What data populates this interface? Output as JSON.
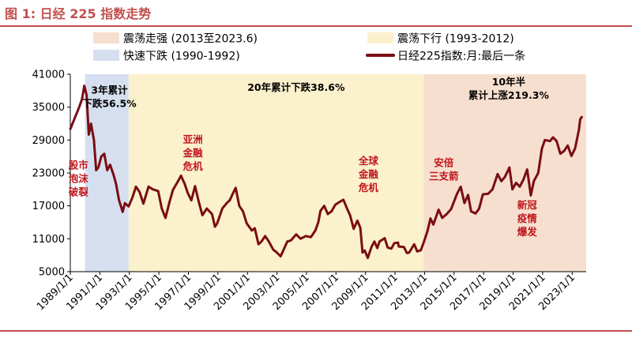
{
  "figure_title": "图 1: 日经 225 指数走势",
  "colors": {
    "title": "#c0504d",
    "series": "#7a0d12",
    "oscillating_up": "#f6dfcf",
    "oscillating_down": "#fbf1cd",
    "rapid_decline": "#d5dff0",
    "red_annotation": "#c0161d"
  },
  "chart_data": {
    "type": "line",
    "title": "",
    "xlabel": "",
    "ylabel": "",
    "ylim": [
      5000,
      41000
    ],
    "yticks": [
      5000,
      11000,
      17000,
      23000,
      29000,
      35000,
      41000
    ],
    "ytick_labels": [
      "5000",
      "11000",
      "17000",
      "23000",
      "29000",
      "35000",
      "41000"
    ],
    "xticks": [
      1989,
      1991,
      1993,
      1995,
      1997,
      1999,
      2001,
      2003,
      2005,
      2007,
      2009,
      2011,
      2013,
      2015,
      2017,
      2019,
      2021,
      2023
    ],
    "xtick_labels": [
      "1989/1/1",
      "1991/1/1",
      "1993/1/1",
      "1995/1/1",
      "1997/1/1",
      "1999/1/1",
      "2001/1/1",
      "2003/1/1",
      "2005/1/1",
      "2007/1/1",
      "2009/1/1",
      "2011/1/1",
      "2013/1/1",
      "2015/1/1",
      "2017/1/1",
      "2019/1/1",
      "2021/1/1",
      "2023/1/1"
    ],
    "xlim": [
      1989,
      2023.95
    ],
    "grid": false,
    "legend_position": "top",
    "shaded_regions": [
      {
        "label": "快速下跌 (1990-1992)",
        "start": 1990.0,
        "end": 1992.95,
        "color": "#d5dff0"
      },
      {
        "label": "震荡下行 (1993-2012)",
        "start": 1992.95,
        "end": 2012.95,
        "color": "#fbf1cd"
      },
      {
        "label": "震荡走强 (2013至2023.6)",
        "start": 2012.95,
        "end": 2023.95,
        "color": "#f6dfcf"
      }
    ],
    "series": [
      {
        "name": "日经225指数:月:最后一条",
        "color": "#7a0d12",
        "points": [
          [
            1989.0,
            31000
          ],
          [
            1989.3,
            33000
          ],
          [
            1989.6,
            35000
          ],
          [
            1989.8,
            36500
          ],
          [
            1989.95,
            38900
          ],
          [
            1990.1,
            37200
          ],
          [
            1990.25,
            30000
          ],
          [
            1990.4,
            32000
          ],
          [
            1990.6,
            29000
          ],
          [
            1990.75,
            23500
          ],
          [
            1990.9,
            24000
          ],
          [
            1991.1,
            26000
          ],
          [
            1991.3,
            26500
          ],
          [
            1991.5,
            23500
          ],
          [
            1991.7,
            24500
          ],
          [
            1991.95,
            22500
          ],
          [
            1992.1,
            21000
          ],
          [
            1992.3,
            18000
          ],
          [
            1992.55,
            15900
          ],
          [
            1992.7,
            17500
          ],
          [
            1992.95,
            16900
          ],
          [
            1993.2,
            18500
          ],
          [
            1993.45,
            20500
          ],
          [
            1993.7,
            19500
          ],
          [
            1993.95,
            17400
          ],
          [
            1994.3,
            20500
          ],
          [
            1994.6,
            20000
          ],
          [
            1994.95,
            19700
          ],
          [
            1995.2,
            16500
          ],
          [
            1995.45,
            14800
          ],
          [
            1995.7,
            17500
          ],
          [
            1995.95,
            19900
          ],
          [
            1996.3,
            21500
          ],
          [
            1996.5,
            22500
          ],
          [
            1996.75,
            21000
          ],
          [
            1996.95,
            19400
          ],
          [
            1997.2,
            18000
          ],
          [
            1997.45,
            20600
          ],
          [
            1997.7,
            17800
          ],
          [
            1997.95,
            15300
          ],
          [
            1998.25,
            16500
          ],
          [
            1998.6,
            15500
          ],
          [
            1998.8,
            13200
          ],
          [
            1998.95,
            13800
          ],
          [
            1999.3,
            16500
          ],
          [
            1999.6,
            17500
          ],
          [
            1999.8,
            18000
          ],
          [
            1999.95,
            18900
          ],
          [
            2000.2,
            20300
          ],
          [
            2000.45,
            17000
          ],
          [
            2000.7,
            16000
          ],
          [
            2000.95,
            13800
          ],
          [
            2001.3,
            12500
          ],
          [
            2001.5,
            12900
          ],
          [
            2001.75,
            10000
          ],
          [
            2001.95,
            10500
          ],
          [
            2002.2,
            11500
          ],
          [
            2002.45,
            10500
          ],
          [
            2002.75,
            9000
          ],
          [
            2002.95,
            8600
          ],
          [
            2003.25,
            7800
          ],
          [
            2003.45,
            9000
          ],
          [
            2003.7,
            10500
          ],
          [
            2003.95,
            10700
          ],
          [
            2004.3,
            11800
          ],
          [
            2004.6,
            11000
          ],
          [
            2004.95,
            11500
          ],
          [
            2005.3,
            11300
          ],
          [
            2005.6,
            12500
          ],
          [
            2005.8,
            14000
          ],
          [
            2005.95,
            16100
          ],
          [
            2006.2,
            17000
          ],
          [
            2006.45,
            15500
          ],
          [
            2006.7,
            16000
          ],
          [
            2006.95,
            17200
          ],
          [
            2007.3,
            17800
          ],
          [
            2007.5,
            18100
          ],
          [
            2007.75,
            16500
          ],
          [
            2007.95,
            15300
          ],
          [
            2008.2,
            12800
          ],
          [
            2008.45,
            14300
          ],
          [
            2008.65,
            13000
          ],
          [
            2008.8,
            8500
          ],
          [
            2008.95,
            8860
          ],
          [
            2009.15,
            7500
          ],
          [
            2009.4,
            9500
          ],
          [
            2009.6,
            10500
          ],
          [
            2009.8,
            9300
          ],
          [
            2009.95,
            10500
          ],
          [
            2010.3,
            11100
          ],
          [
            2010.5,
            9400
          ],
          [
            2010.75,
            9200
          ],
          [
            2010.95,
            10200
          ],
          [
            2011.2,
            10300
          ],
          [
            2011.25,
            9600
          ],
          [
            2011.6,
            9500
          ],
          [
            2011.8,
            8400
          ],
          [
            2011.95,
            8450
          ],
          [
            2012.3,
            10000
          ],
          [
            2012.5,
            8700
          ],
          [
            2012.75,
            8900
          ],
          [
            2012.95,
            10400
          ],
          [
            2013.2,
            12400
          ],
          [
            2013.4,
            14700
          ],
          [
            2013.6,
            13600
          ],
          [
            2013.95,
            16300
          ],
          [
            2014.2,
            14800
          ],
          [
            2014.5,
            15500
          ],
          [
            2014.8,
            16400
          ],
          [
            2014.95,
            17450
          ],
          [
            2015.2,
            19200
          ],
          [
            2015.45,
            20500
          ],
          [
            2015.7,
            17500
          ],
          [
            2015.95,
            19000
          ],
          [
            2016.15,
            16000
          ],
          [
            2016.45,
            15600
          ],
          [
            2016.7,
            16500
          ],
          [
            2016.95,
            19100
          ],
          [
            2017.3,
            19200
          ],
          [
            2017.6,
            20000
          ],
          [
            2017.95,
            22800
          ],
          [
            2018.2,
            21500
          ],
          [
            2018.45,
            22300
          ],
          [
            2018.75,
            24000
          ],
          [
            2018.95,
            20000
          ],
          [
            2019.2,
            21200
          ],
          [
            2019.45,
            20500
          ],
          [
            2019.7,
            21800
          ],
          [
            2019.95,
            23650
          ],
          [
            2020.2,
            18900
          ],
          [
            2020.4,
            21500
          ],
          [
            2020.7,
            23000
          ],
          [
            2020.95,
            27400
          ],
          [
            2021.15,
            29000
          ],
          [
            2021.5,
            28800
          ],
          [
            2021.7,
            29500
          ],
          [
            2021.95,
            28800
          ],
          [
            2022.2,
            26500
          ],
          [
            2022.45,
            27000
          ],
          [
            2022.7,
            28000
          ],
          [
            2022.95,
            26100
          ],
          [
            2023.2,
            27500
          ],
          [
            2023.45,
            30800
          ],
          [
            2023.55,
            32800
          ],
          [
            2023.65,
            33200
          ]
        ]
      }
    ],
    "annotations": [
      {
        "lines": [
          "3年累计",
          "下跌56.5%"
        ],
        "x": 1991.65,
        "y": 37500,
        "style": "black"
      },
      {
        "lines": [
          "20年累计下跌38.6%"
        ],
        "x": 2004.3,
        "y": 38000,
        "style": "black"
      },
      {
        "lines": [
          "10年半",
          "累计上涨219.3%"
        ],
        "x": 2018.7,
        "y": 39000,
        "style": "black"
      },
      {
        "lines": [
          "股市",
          "泡沫",
          "破裂"
        ],
        "x": 1989.55,
        "y": 23800,
        "style": "red"
      },
      {
        "lines": [
          "亚洲",
          "金融",
          "危机"
        ],
        "x": 1997.3,
        "y": 28500,
        "style": "red"
      },
      {
        "lines": [
          "全球",
          "金融",
          "危机"
        ],
        "x": 2009.2,
        "y": 24600,
        "style": "red"
      },
      {
        "lines": [
          "安倍",
          "三支箭"
        ],
        "x": 2014.3,
        "y": 24200,
        "style": "red"
      },
      {
        "lines": [
          "新冠",
          "疫情",
          "爆发"
        ],
        "x": 2019.95,
        "y": 16500,
        "style": "red"
      }
    ]
  }
}
